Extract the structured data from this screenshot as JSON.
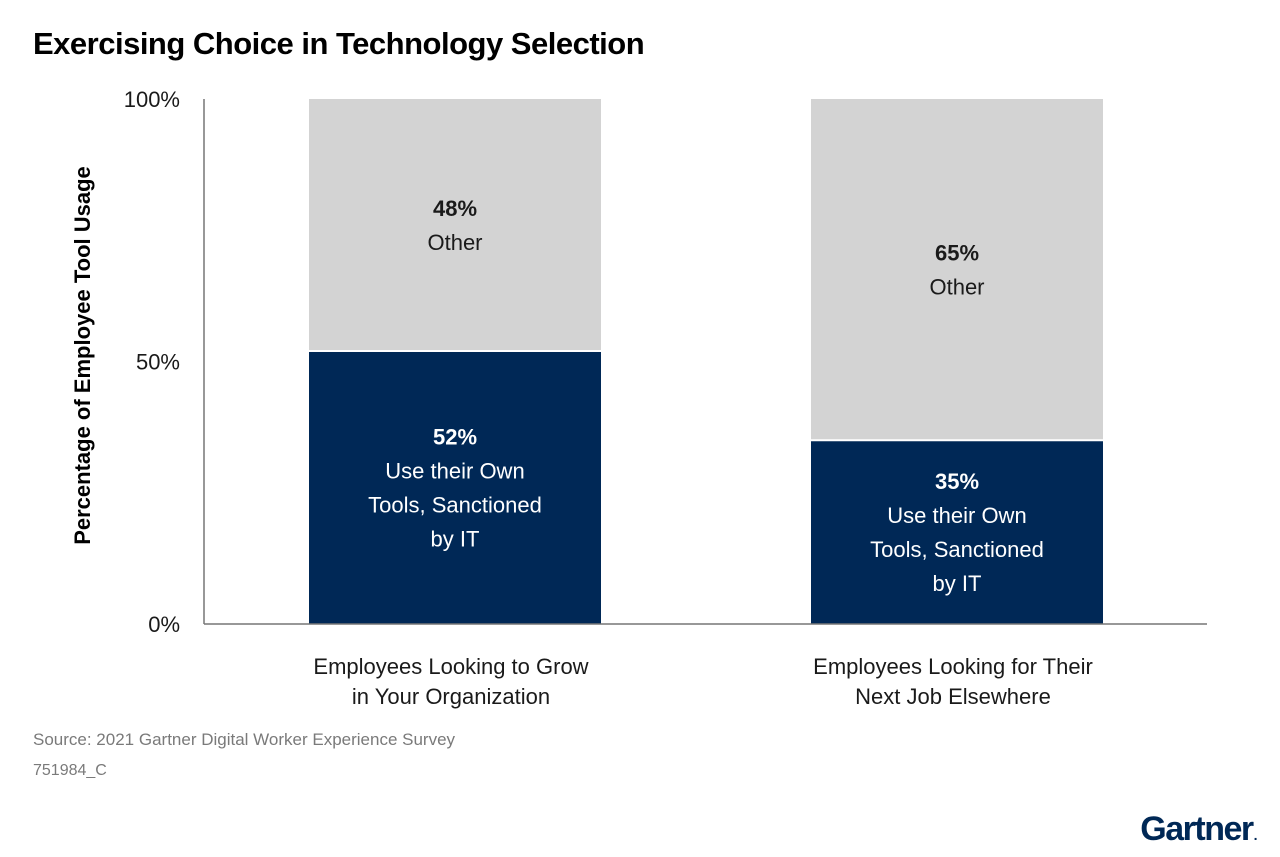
{
  "title": "Exercising Choice in Technology Selection",
  "source": "Source: 2021 Gartner Digital Worker Experience Survey",
  "doc_code": "751984_C",
  "logo_text": "Gartner",
  "logo_mark": ".",
  "colors": {
    "own_tools": "#002856",
    "other": "#d3d3d3",
    "axis": "#777777",
    "text_dark": "#1a1a1a",
    "text_light": "#ffffff"
  },
  "chart_data": {
    "type": "bar",
    "stacked": true,
    "title": "Exercising Choice in Technology Selection",
    "ylabel": "Percentage of Employee Tool Usage",
    "xlabel": "",
    "ylim": [
      0,
      100
    ],
    "yticks": [
      "0%",
      "50%",
      "100%"
    ],
    "ytick_values": [
      0,
      50,
      100
    ],
    "categories": [
      [
        "Employees Looking to Grow",
        "in Your Organization"
      ],
      [
        "Employees Looking for Their",
        "Next Job Elsewhere"
      ]
    ],
    "series": [
      {
        "key": "own_tools",
        "values": [
          52,
          35
        ],
        "value_labels": [
          "52%",
          "35%"
        ],
        "label_lines": [
          "Use their Own",
          "Tools, Sanctioned",
          "by IT"
        ]
      },
      {
        "key": "other",
        "values": [
          48,
          65
        ],
        "value_labels": [
          "48%",
          "65%"
        ],
        "label_lines": [
          "Other"
        ]
      }
    ],
    "grid": false,
    "legend": "none"
  }
}
